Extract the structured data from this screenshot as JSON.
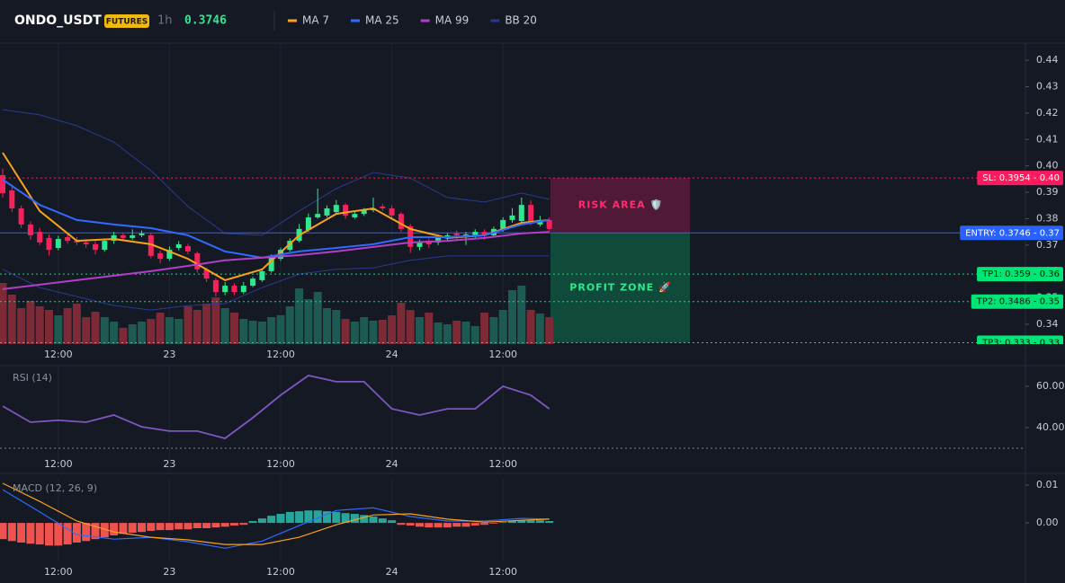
{
  "header": {
    "symbol": "ONDO_USDT",
    "badge": "FUTURES",
    "interval": "1h",
    "price": "0.3746"
  },
  "chart_data": [
    {
      "type": "candlestick",
      "ylim": [
        0.3325,
        0.4465
      ],
      "yticks": [
        0.34,
        0.35,
        0.36,
        0.37,
        0.38,
        0.39,
        {
          "value": 0.4,
          "label": "0.40"
        },
        0.41,
        0.42,
        0.43,
        0.44
      ],
      "xticks": [
        {
          "value": 6,
          "label": "12:00"
        },
        {
          "value": 18,
          "label": "23"
        },
        {
          "value": 30,
          "label": "12:00"
        },
        {
          "value": 42,
          "label": "24"
        },
        {
          "value": 54,
          "label": "12:00"
        }
      ],
      "up_color": "#2ee88f",
      "down_color": "#f5225b",
      "open": [
        0.3965,
        0.3907,
        0.3839,
        0.3778,
        0.375,
        0.3727,
        0.3689,
        0.373,
        0.3716,
        0.371,
        0.3703,
        0.3682,
        0.3716,
        0.3737,
        0.3727,
        0.3737,
        0.3737,
        0.3669,
        0.3648,
        0.3689,
        0.3696,
        0.3669,
        0.3608,
        0.3567,
        0.3522,
        0.3546,
        0.3522,
        0.3546,
        0.3567,
        0.3601,
        0.3648,
        0.3682,
        0.3716,
        0.3757,
        0.3805,
        0.3812,
        0.3825,
        0.3852,
        0.3805,
        0.3818,
        0.3832,
        0.3846,
        0.3839,
        0.3818,
        0.3771,
        0.3693,
        0.3716,
        0.371,
        0.3727,
        0.3744,
        0.373,
        0.3737,
        0.375,
        0.3737,
        0.3761,
        0.3795,
        0.3791,
        0.3852,
        0.3778,
        0.3795
      ],
      "high": [
        0.399,
        0.393,
        0.385,
        0.379,
        0.3765,
        0.374,
        0.3735,
        0.3745,
        0.373,
        0.3722,
        0.3715,
        0.3725,
        0.375,
        0.3745,
        0.376,
        0.3755,
        0.3745,
        0.368,
        0.3695,
        0.3715,
        0.3705,
        0.3675,
        0.3615,
        0.3575,
        0.356,
        0.3555,
        0.356,
        0.358,
        0.361,
        0.3665,
        0.369,
        0.3725,
        0.378,
        0.382,
        0.3914,
        0.385,
        0.387,
        0.386,
        0.383,
        0.384,
        0.388,
        0.3855,
        0.385,
        0.3825,
        0.378,
        0.372,
        0.3725,
        0.374,
        0.3745,
        0.3755,
        0.375,
        0.376,
        0.376,
        0.377,
        0.3805,
        0.384,
        0.388,
        0.387,
        0.381,
        0.3805
      ],
      "low": [
        0.388,
        0.3825,
        0.3765,
        0.372,
        0.37,
        0.366,
        0.368,
        0.3705,
        0.37,
        0.369,
        0.3665,
        0.3675,
        0.3705,
        0.3715,
        0.372,
        0.373,
        0.365,
        0.363,
        0.364,
        0.368,
        0.3665,
        0.3595,
        0.356,
        0.3505,
        0.351,
        0.351,
        0.3515,
        0.354,
        0.356,
        0.3595,
        0.364,
        0.3675,
        0.371,
        0.375,
        0.38,
        0.3805,
        0.382,
        0.38,
        0.38,
        0.381,
        0.3825,
        0.383,
        0.38,
        0.375,
        0.367,
        0.368,
        0.369,
        0.37,
        0.3715,
        0.372,
        0.37,
        0.3725,
        0.372,
        0.373,
        0.375,
        0.3785,
        0.3785,
        0.3775,
        0.377,
        0.375
      ],
      "close": [
        0.3897,
        0.3839,
        0.3778,
        0.3737,
        0.371,
        0.3682,
        0.3723,
        0.3716,
        0.371,
        0.3703,
        0.3682,
        0.3716,
        0.3737,
        0.3727,
        0.3737,
        0.3744,
        0.3659,
        0.3648,
        0.3682,
        0.3703,
        0.3676,
        0.3608,
        0.3573,
        0.3522,
        0.3546,
        0.3522,
        0.3546,
        0.3573,
        0.3601,
        0.3659,
        0.3682,
        0.3716,
        0.3761,
        0.3805,
        0.3818,
        0.3839,
        0.3852,
        0.3812,
        0.3818,
        0.3832,
        0.3839,
        0.3839,
        0.3812,
        0.3761,
        0.3693,
        0.371,
        0.3703,
        0.3727,
        0.3737,
        0.3737,
        0.374,
        0.375,
        0.3737,
        0.3761,
        0.3795,
        0.3812,
        0.3852,
        0.3784,
        0.3795,
        0.3761
      ],
      "volume": {
        "ylim": [
          0,
          100
        ],
        "up_color": "#1d5b52",
        "down_color": "#7d2a36",
        "values": [
          68,
          55,
          40,
          48,
          42,
          38,
          32,
          40,
          45,
          30,
          36,
          30,
          25,
          18,
          22,
          25,
          28,
          35,
          30,
          28,
          42,
          38,
          45,
          52,
          40,
          35,
          28,
          26,
          25,
          30,
          32,
          42,
          62,
          50,
          58,
          40,
          38,
          28,
          25,
          30,
          26,
          27,
          32,
          46,
          38,
          30,
          35,
          24,
          22,
          26,
          25,
          20,
          35,
          30,
          38,
          60,
          65,
          38,
          34,
          30
        ]
      },
      "series": [
        {
          "name": "MA 7",
          "color": "#f7a21b",
          "x": [
            0,
            4,
            8,
            12,
            16,
            20,
            24,
            28,
            32,
            36,
            40,
            44,
            48,
            52,
            56,
            59
          ],
          "values": [
            0.405,
            0.3829,
            0.3716,
            0.3723,
            0.3703,
            0.3648,
            0.3567,
            0.3608,
            0.3737,
            0.3818,
            0.3839,
            0.3761,
            0.3727,
            0.3737,
            0.3784,
            0.3795
          ]
        },
        {
          "name": "MA 25",
          "color": "#2f6bff",
          "x": [
            0,
            4,
            8,
            12,
            16,
            20,
            24,
            28,
            32,
            36,
            40,
            44,
            48,
            52,
            56,
            59
          ],
          "values": [
            0.3948,
            0.3852,
            0.3795,
            0.3778,
            0.3764,
            0.3737,
            0.3676,
            0.3652,
            0.3676,
            0.3689,
            0.3703,
            0.373,
            0.373,
            0.3737,
            0.3778,
            0.3795
          ]
        },
        {
          "name": "MA 99",
          "color": "#b13fc9",
          "x": [
            0,
            4,
            8,
            12,
            16,
            20,
            24,
            28,
            32,
            36,
            40,
            44,
            48,
            52,
            56,
            59
          ],
          "values": [
            0.3533,
            0.355,
            0.3567,
            0.3584,
            0.3601,
            0.3621,
            0.3642,
            0.3652,
            0.3662,
            0.3676,
            0.3693,
            0.371,
            0.3716,
            0.3727,
            0.3744,
            0.375
          ]
        },
        {
          "name": "BB 20",
          "color": "#2b3a8f",
          "x": [
            0,
            4,
            8,
            12,
            16,
            20,
            24,
            28,
            32,
            36,
            40,
            44,
            48,
            52,
            56,
            59
          ],
          "upper": [
            0.4213,
            0.4193,
            0.4152,
            0.409,
            0.3982,
            0.3846,
            0.3744,
            0.3737,
            0.3829,
            0.3914,
            0.3975,
            0.3954,
            0.388,
            0.3863,
            0.3897,
            0.3873
          ],
          "lower": [
            0.3608,
            0.3539,
            0.3505,
            0.3471,
            0.3454,
            0.3471,
            0.3478,
            0.3539,
            0.359,
            0.3608,
            0.3614,
            0.3642,
            0.3659,
            0.3659,
            0.3659,
            0.3659
          ]
        }
      ],
      "levels": [
        {
          "label": "SL: 0.3954 - 0.40",
          "value": 0.3954,
          "color": "#ff1a5e",
          "style": "dotted"
        },
        {
          "label": "ENTRY: 0.3746 - 0.37",
          "value": 0.3746,
          "color": "#2962ff",
          "style": "solid"
        },
        {
          "label": "TP1: 0.359 - 0.36",
          "value": 0.359,
          "color": "#00e676",
          "style": "dotted"
        },
        {
          "label": "TP2: 0.3486 - 0.35",
          "value": 0.3486,
          "color": "#00e676",
          "style": "dotted"
        },
        {
          "label": "TP3: 0.333 - 0.33",
          "value": 0.333,
          "color": "#00e676",
          "style": "dotted"
        }
      ],
      "zones": [
        {
          "label": "RISK AREA 🛡️",
          "from": 0.3954,
          "to": 0.3746,
          "color": "#e91e63",
          "text_color": "#ff2d6f"
        },
        {
          "label": "PROFIT ZONE 🚀",
          "from": 0.3746,
          "to": 0.333,
          "color": "#00c878",
          "text_color": "#2ee88f"
        }
      ]
    },
    {
      "type": "rsi",
      "title": "RSI (14)",
      "color": "#7e57c2",
      "ylim": [
        20,
        70
      ],
      "yticks": [
        {
          "value": 60,
          "label": "60.00"
        },
        {
          "value": 40,
          "label": "40.00"
        }
      ],
      "bands": [
        30
      ],
      "xticks": [
        {
          "value": 6,
          "label": "12:00"
        },
        {
          "value": 18,
          "label": "23"
        },
        {
          "value": 30,
          "label": "12:00"
        },
        {
          "value": 42,
          "label": "24"
        },
        {
          "value": 54,
          "label": "12:00"
        }
      ],
      "x": [
        0,
        3,
        6,
        9,
        12,
        15,
        18,
        21,
        24,
        27,
        30,
        33,
        36,
        39,
        42,
        45,
        48,
        51,
        54,
        57,
        59
      ],
      "values": [
        50.4,
        42.6,
        43.5,
        42.6,
        46.1,
        40.4,
        38.3,
        38.3,
        34.8,
        44.8,
        55.7,
        65.2,
        62.2,
        62.2,
        49.1,
        46.1,
        49.1,
        49.1,
        60,
        55.7,
        49.1
      ]
    },
    {
      "type": "macd",
      "title": "MACD (12, 26, 9)",
      "ylim": [
        -0.0102,
        0.0124
      ],
      "yticks": [
        0.01,
        {
          "value": 0,
          "label": "0.00"
        }
      ],
      "xticks": [
        {
          "value": 6,
          "label": "12:00"
        },
        {
          "value": 18,
          "label": "23"
        },
        {
          "value": 30,
          "label": "12:00"
        },
        {
          "value": 42,
          "label": "24"
        },
        {
          "value": 54,
          "label": "12:00"
        }
      ],
      "histogram": {
        "up_color": "#26a69a",
        "down_color": "#ef5350",
        "values": [
          -0.0043,
          -0.0048,
          -0.0052,
          -0.0055,
          -0.0057,
          -0.006,
          -0.006,
          -0.0057,
          -0.0052,
          -0.0048,
          -0.0043,
          -0.0038,
          -0.0033,
          -0.0029,
          -0.0026,
          -0.0024,
          -0.0021,
          -0.0019,
          -0.0019,
          -0.0017,
          -0.0017,
          -0.0014,
          -0.0014,
          -0.0012,
          -0.001,
          -0.0007,
          -0.0005,
          0.0005,
          0.0012,
          0.0019,
          0.0024,
          0.0029,
          0.0031,
          0.0033,
          0.0033,
          0.0031,
          0.0029,
          0.0026,
          0.0024,
          0.0021,
          0.0017,
          0.0012,
          0.0007,
          -0.0005,
          -0.0007,
          -0.001,
          -0.0012,
          -0.0012,
          -0.0012,
          -0.001,
          -0.001,
          -0.0007,
          -0.0005,
          -0.0002,
          0.0002,
          0.0005,
          0.0007,
          0.0007,
          0.0007,
          0.0005
        ]
      },
      "series": [
        {
          "color": "#2f6bff",
          "x": [
            0,
            4,
            8,
            12,
            16,
            20,
            24,
            28,
            32,
            36,
            40,
            44,
            48,
            52,
            56,
            59
          ],
          "values": [
            0.0088,
            0.0029,
            -0.0031,
            -0.0043,
            -0.0038,
            -0.005,
            -0.0067,
            -0.0048,
            -0.0007,
            0.0033,
            0.004,
            0.0017,
            0.0005,
            0.0005,
            0.0012,
            0.001
          ]
        },
        {
          "color": "#f7a21b",
          "x": [
            0,
            4,
            8,
            12,
            16,
            20,
            24,
            28,
            32,
            36,
            40,
            44,
            48,
            52,
            56,
            59
          ],
          "values": [
            0.0105,
            0.0057,
            0.0005,
            -0.0024,
            -0.0038,
            -0.0045,
            -0.0057,
            -0.0057,
            -0.0038,
            -0.0005,
            0.0021,
            0.0024,
            0.001,
            0.0002,
            0.0007,
            0.001
          ]
        }
      ]
    }
  ]
}
